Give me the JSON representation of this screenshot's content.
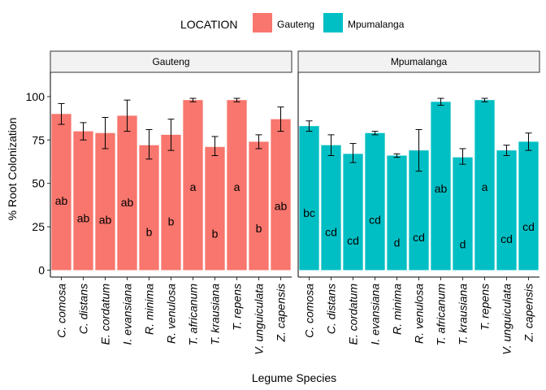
{
  "chart_data": {
    "type": "bar",
    "legend": {
      "title": "LOCATION",
      "placement": "top",
      "items": [
        {
          "label": "Gauteng",
          "color": "#F8766D"
        },
        {
          "label": "Mpumalanga",
          "color": "#00BFC4"
        }
      ]
    },
    "xlabel": "Legume Species",
    "ylabel": "% Root Colonization",
    "ylim": [
      -4,
      114
    ],
    "yticks": [
      0,
      25,
      50,
      75,
      100
    ],
    "categories": [
      "C. comosa",
      "C. distans",
      "E. cordatum",
      "I. evansiana",
      "R. minima",
      "R. venulosa",
      "T. africanum",
      "T. krausiana",
      "T. repens",
      "V. unguiculata",
      "Z. capensis"
    ],
    "facets": [
      {
        "name": "Gauteng",
        "color": "#F8766D",
        "values": [
          90,
          80,
          79,
          89,
          72,
          78,
          98,
          71,
          98,
          74,
          87
        ],
        "error_low": [
          84,
          75,
          70,
          80,
          64,
          69,
          97,
          66,
          97,
          70,
          80
        ],
        "error_high": [
          96,
          85,
          88,
          98,
          81,
          87,
          99,
          77,
          99,
          78,
          94
        ],
        "letters": [
          "ab",
          "ab",
          "ab",
          "ab",
          "b",
          "b",
          "a",
          "b",
          "a",
          "b",
          "ab"
        ],
        "letter_y": [
          40,
          30,
          29,
          39,
          22,
          28,
          48,
          21,
          48,
          24,
          37
        ]
      },
      {
        "name": "Mpumalanga",
        "color": "#00BFC4",
        "values": [
          83,
          72,
          67,
          79,
          66,
          69,
          97,
          65,
          98,
          69,
          74
        ],
        "error_low": [
          80,
          66,
          62,
          78,
          65,
          57,
          95,
          61,
          97,
          66,
          69
        ],
        "error_high": [
          86,
          78,
          73,
          80,
          67,
          81,
          99,
          70,
          99,
          72,
          79
        ],
        "letters": [
          "bc",
          "cd",
          "cd",
          "cd",
          "d",
          "cd",
          "ab",
          "d",
          "a",
          "cd",
          "cd"
        ],
        "letter_y": [
          33,
          22,
          17,
          29,
          16,
          19,
          47,
          15,
          48,
          18,
          25
        ]
      }
    ]
  }
}
